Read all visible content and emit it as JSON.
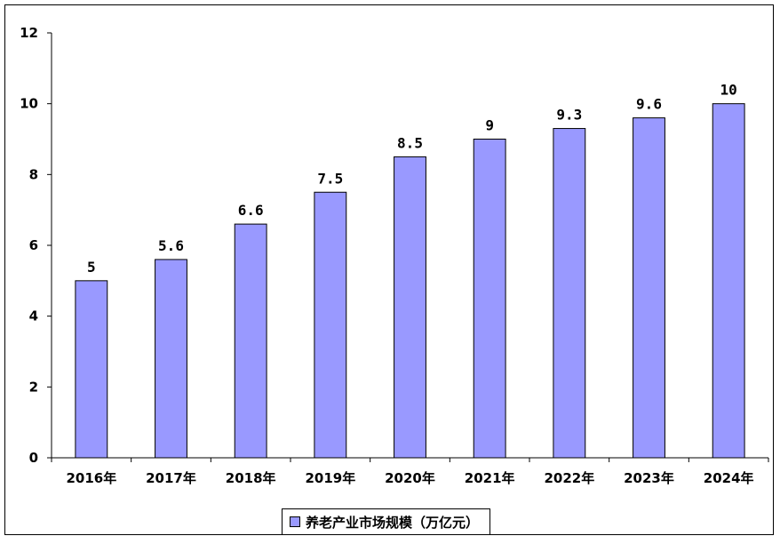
{
  "chart_data": {
    "type": "bar",
    "categories": [
      "2016年",
      "2017年",
      "2018年",
      "2019年",
      "2020年",
      "2021年",
      "2022年",
      "2023年",
      "2024年"
    ],
    "series": [
      {
        "name": "养老产业市场规模（万亿元）",
        "values": [
          5,
          5.6,
          6.6,
          7.5,
          8.5,
          9,
          9.3,
          9.6,
          10
        ]
      }
    ],
    "data_labels": [
      "5",
      "5.6",
      "6.6",
      "7.5",
      "8.5",
      "9",
      "9.3",
      "9.6",
      "10"
    ],
    "ylim": [
      0,
      12
    ],
    "yticks": [
      0,
      2,
      4,
      6,
      8,
      10,
      12
    ],
    "title": "",
    "xlabel": "",
    "ylabel": "",
    "grid": false,
    "legend_position": "bottom",
    "colors": {
      "bar_fill": "#9999ff",
      "bar_stroke": "#000000",
      "axis": "#000000"
    }
  }
}
